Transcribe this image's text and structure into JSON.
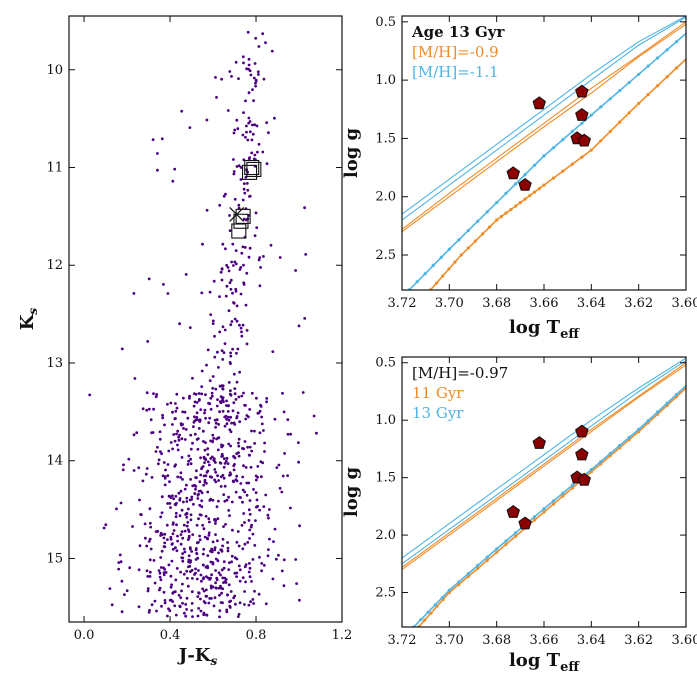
{
  "chart_data": [
    {
      "type": "scatter",
      "xlabel": "J-K",
      "xlabel_sub": "s",
      "ylabel": "K",
      "ylabel_sub": "s",
      "xlim": [
        -0.07,
        1.2
      ],
      "ylim": [
        15.65,
        9.45
      ],
      "y_inverted": true,
      "xticks": [
        0.0,
        0.4,
        0.8,
        1.2
      ],
      "xtick_labels": [
        "0.0",
        "0.4",
        "0.8",
        "1.2"
      ],
      "yticks": [
        10,
        11,
        12,
        13,
        14,
        15
      ],
      "ytick_labels": [
        "10",
        "11",
        "12",
        "13",
        "14",
        "15"
      ],
      "grid": false,
      "point_color": "#4b0082",
      "squares": [
        [
          0.78,
          11.0
        ],
        [
          0.77,
          11.05
        ],
        [
          0.79,
          11.02
        ],
        [
          0.74,
          11.5
        ],
        [
          0.73,
          11.55
        ],
        [
          0.72,
          11.65
        ]
      ],
      "cross": [
        0.71,
        11.48
      ]
    },
    {
      "type": "line",
      "xlabel": "log T",
      "xlabel_sub": "eff",
      "ylabel": "log g",
      "xlim": [
        3.72,
        3.6
      ],
      "ylim": [
        2.8,
        0.45
      ],
      "x_inverted": true,
      "y_inverted": true,
      "xticks": [
        3.72,
        3.7,
        3.68,
        3.66,
        3.64,
        3.62,
        3.6
      ],
      "xtick_labels": [
        "3.72",
        "3.70",
        "3.68",
        "3.66",
        "3.64",
        "3.62",
        "3.60"
      ],
      "yticks": [
        0.5,
        1.0,
        1.5,
        2.0,
        2.5
      ],
      "ytick_labels": [
        "0.5",
        "1.0",
        "1.5",
        "2.0",
        "2.5"
      ],
      "legend": [
        "Age 13 Gyr",
        "[M/H]=-0.9",
        "[M/H]=-1.1"
      ],
      "legend_colors": [
        "#111111",
        "#f08c28",
        "#4fb4e6"
      ],
      "legend_placement": "top-left",
      "series": [
        {
          "color": "#f08c28",
          "agb": [
            [
              3.72,
              2.28
            ],
            [
              3.7,
              1.97
            ],
            [
              3.68,
              1.67
            ],
            [
              3.66,
              1.37
            ],
            [
              3.64,
              1.07
            ],
            [
              3.62,
              0.79
            ],
            [
              3.6,
              0.5
            ]
          ],
          "rgb": [
            [
              3.72,
              2.3
            ],
            [
              3.7,
              2.0
            ],
            [
              3.68,
              1.7
            ],
            [
              3.66,
              1.4
            ],
            [
              3.64,
              1.11
            ],
            [
              3.62,
              0.8
            ],
            [
              3.6,
              0.52
            ]
          ],
          "rgb_dotted": [
            [
              3.708,
              2.8
            ],
            [
              3.695,
              2.5
            ],
            [
              3.68,
              2.2
            ],
            [
              3.67,
              2.05
            ],
            [
              3.66,
              1.9
            ],
            [
              3.64,
              1.6
            ],
            [
              3.62,
              1.2
            ],
            [
              3.6,
              0.82
            ]
          ]
        },
        {
          "color": "#4fb4e6",
          "agb": [
            [
              3.72,
              2.15
            ],
            [
              3.7,
              1.85
            ],
            [
              3.68,
              1.55
            ],
            [
              3.66,
              1.25
            ],
            [
              3.64,
              0.95
            ],
            [
              3.62,
              0.67
            ],
            [
              3.6,
              0.45
            ]
          ],
          "rgb": [
            [
              3.72,
              2.2
            ],
            [
              3.7,
              1.9
            ],
            [
              3.68,
              1.6
            ],
            [
              3.66,
              1.3
            ],
            [
              3.64,
              1.0
            ],
            [
              3.62,
              0.7
            ],
            [
              3.6,
              0.46
            ]
          ],
          "rgb_dotted": [
            [
              3.717,
              2.8
            ],
            [
              3.7,
              2.45
            ],
            [
              3.68,
              2.05
            ],
            [
              3.66,
              1.65
            ],
            [
              3.64,
              1.3
            ],
            [
              3.62,
              0.95
            ],
            [
              3.6,
              0.6
            ]
          ]
        }
      ],
      "stars": [
        [
          3.662,
          1.2
        ],
        [
          3.644,
          1.1
        ],
        [
          3.644,
          1.3
        ],
        [
          3.646,
          1.5
        ],
        [
          3.643,
          1.52
        ],
        [
          3.673,
          1.8
        ],
        [
          3.668,
          1.9
        ]
      ]
    },
    {
      "type": "line",
      "xlabel": "log T",
      "xlabel_sub": "eff",
      "ylabel": "log g",
      "xlim": [
        3.72,
        3.6
      ],
      "ylim": [
        2.8,
        0.45
      ],
      "x_inverted": true,
      "y_inverted": true,
      "xticks": [
        3.72,
        3.7,
        3.68,
        3.66,
        3.64,
        3.62,
        3.6
      ],
      "xtick_labels": [
        "3.72",
        "3.70",
        "3.68",
        "3.66",
        "3.64",
        "3.62",
        "3.60"
      ],
      "yticks": [
        0.5,
        1.0,
        1.5,
        2.0,
        2.5
      ],
      "ytick_labels": [
        "0.5",
        "1.0",
        "1.5",
        "2.0",
        "2.5"
      ],
      "legend": [
        "[M/H]=-0.97",
        "11 Gyr",
        "13 Gyr"
      ],
      "legend_colors": [
        "#111111",
        "#f08c28",
        "#4fb4e6"
      ],
      "legend_placement": "top-left",
      "series": [
        {
          "color": "#f08c28",
          "agb": [
            [
              3.72,
              2.3
            ],
            [
              3.7,
              2.0
            ],
            [
              3.68,
              1.7
            ],
            [
              3.66,
              1.4
            ],
            [
              3.64,
              1.1
            ],
            [
              3.62,
              0.8
            ],
            [
              3.6,
              0.52
            ]
          ],
          "rgb": [
            [
              3.72,
              2.28
            ],
            [
              3.7,
              1.98
            ],
            [
              3.68,
              1.68
            ],
            [
              3.66,
              1.38
            ],
            [
              3.64,
              1.08
            ],
            [
              3.62,
              0.79
            ],
            [
              3.6,
              0.5
            ]
          ],
          "rgb_dotted": [
            [
              3.713,
              2.8
            ],
            [
              3.7,
              2.5
            ],
            [
              3.68,
              2.15
            ],
            [
              3.66,
              1.8
            ],
            [
              3.64,
              1.45
            ],
            [
              3.62,
              1.1
            ],
            [
              3.6,
              0.72
            ]
          ]
        },
        {
          "color": "#4fb4e6",
          "agb": [
            [
              3.72,
              2.25
            ],
            [
              3.7,
              1.95
            ],
            [
              3.68,
              1.65
            ],
            [
              3.66,
              1.35
            ],
            [
              3.64,
              1.05
            ],
            [
              3.62,
              0.75
            ],
            [
              3.6,
              0.48
            ]
          ],
          "rgb": [
            [
              3.72,
              2.2
            ],
            [
              3.7,
              1.9
            ],
            [
              3.68,
              1.6
            ],
            [
              3.66,
              1.3
            ],
            [
              3.64,
              1.0
            ],
            [
              3.62,
              0.72
            ],
            [
              3.6,
              0.46
            ]
          ],
          "rgb_dotted": [
            [
              3.715,
              2.8
            ],
            [
              3.7,
              2.48
            ],
            [
              3.68,
              2.12
            ],
            [
              3.66,
              1.77
            ],
            [
              3.64,
              1.43
            ],
            [
              3.62,
              1.08
            ],
            [
              3.6,
              0.7
            ]
          ]
        }
      ],
      "stars": [
        [
          3.662,
          1.2
        ],
        [
          3.644,
          1.1
        ],
        [
          3.644,
          1.3
        ],
        [
          3.646,
          1.5
        ],
        [
          3.643,
          1.52
        ],
        [
          3.673,
          1.8
        ],
        [
          3.668,
          1.9
        ]
      ]
    }
  ]
}
